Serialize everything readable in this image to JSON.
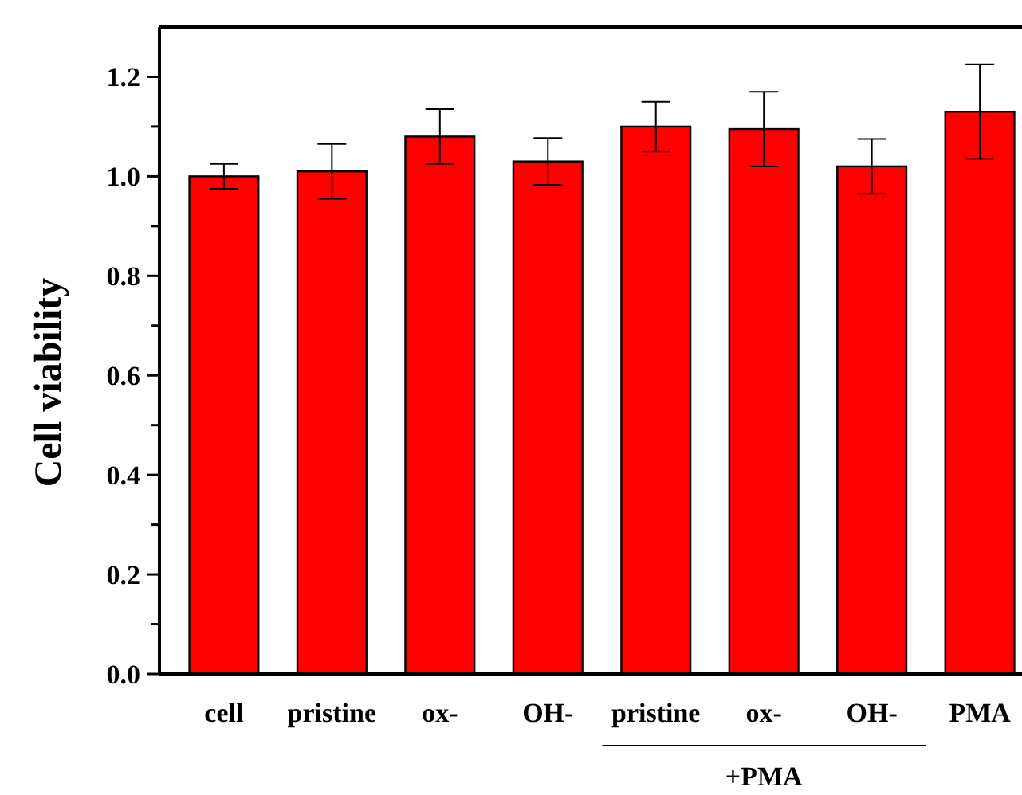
{
  "chart_data": {
    "type": "bar",
    "ylabel": "Cell viability",
    "categories": [
      "cell",
      "pristine",
      "ox-",
      "OH-",
      "pristine",
      "ox-",
      "OH-",
      "PMA"
    ],
    "values": [
      1.0,
      1.01,
      1.08,
      1.03,
      1.1,
      1.095,
      1.02,
      1.13
    ],
    "errors": [
      0.025,
      0.055,
      0.055,
      0.047,
      0.05,
      0.075,
      0.055,
      0.095
    ],
    "color": "#ff0000",
    "ylim": [
      0,
      1.3
    ],
    "yticks": [
      {
        "value": 0,
        "label": "0.0"
      },
      {
        "value": 0.1,
        "label": null
      },
      {
        "value": 0.2,
        "label": "0.2"
      },
      {
        "value": 0.3,
        "label": null
      },
      {
        "value": 0.4,
        "label": "0.4"
      },
      {
        "value": 0.5,
        "label": null
      },
      {
        "value": 0.6,
        "label": "0.6"
      },
      {
        "value": 0.7,
        "label": null
      },
      {
        "value": 0.8,
        "label": "0.8"
      },
      {
        "value": 0.9,
        "label": null
      },
      {
        "value": 1.0,
        "label": "1.0"
      },
      {
        "value": 1.1,
        "label": null
      },
      {
        "value": 1.2,
        "label": "1.2"
      }
    ],
    "annotations": [
      "+PMA"
    ],
    "grid": false
  }
}
